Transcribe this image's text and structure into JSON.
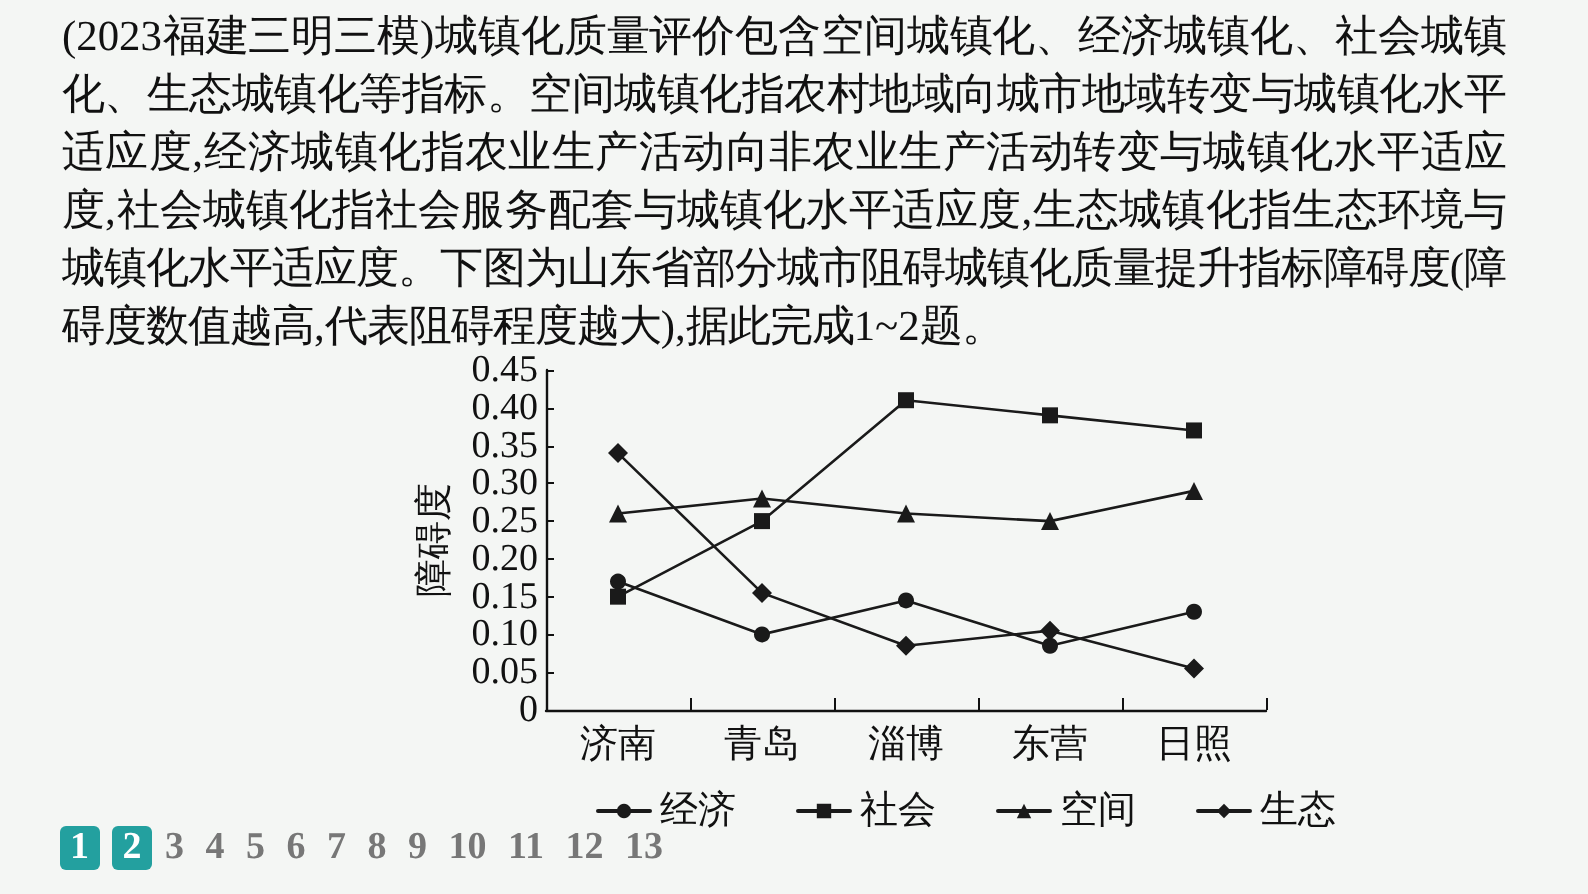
{
  "chart_data": {
    "type": "line",
    "title": "(2023福建三明三模)城镇化质量评价包含空间城镇化、经济城镇化、社会城镇化、生态城镇化等指标。空间城镇化指农村地域向城市地域转变与城镇化水平适应度,经济城镇化指农业生产活动向非农业生产活动转变与城镇化水平适应度,社会城镇化指社会服务配套与城镇化水平适应度,生态城镇化指生态环境与城镇化水平适应度。下图为山东省部分城市阻碍城镇化质量提升指标障碍度(障碍度数值越高,代表阻碍程度越大),据此完成1~2题。",
    "ylabel": "障碍度",
    "categories": [
      "济南",
      "青岛",
      "淄博",
      "东营",
      "日照"
    ],
    "series": [
      {
        "name": "经济",
        "color": "#1a1a1a",
        "marker": "circle",
        "values": [
          0.17,
          0.1,
          0.145,
          0.085,
          0.13
        ]
      },
      {
        "name": "社会",
        "color": "#1a1a1a",
        "marker": "square",
        "values": [
          0.15,
          0.25,
          0.41,
          0.39,
          0.37
        ]
      },
      {
        "name": "空间",
        "color": "#1a1a1a",
        "marker": "triangle",
        "values": [
          0.26,
          0.28,
          0.26,
          0.25,
          0.29
        ]
      },
      {
        "name": "生态",
        "color": "#1a1a1a",
        "marker": "diamond",
        "values": [
          0.34,
          0.155,
          0.085,
          0.105,
          0.055
        ]
      }
    ],
    "ylim": [
      0,
      0.45
    ],
    "yticks": [
      0,
      0.05,
      {
        "value": 0.1,
        "label": "0.10"
      },
      0.15,
      {
        "value": 0.2,
        "label": "0.20"
      },
      0.25,
      {
        "value": 0.3,
        "label": "0.30"
      },
      0.35,
      {
        "value": 0.4,
        "label": "0.40"
      },
      0.45
    ],
    "grid": false,
    "legend": "bottom",
    "line_style": "solid",
    "annotations": [
      "1 2 3 4 5 6 7 8 9 10 11 12 13"
    ]
  }
}
